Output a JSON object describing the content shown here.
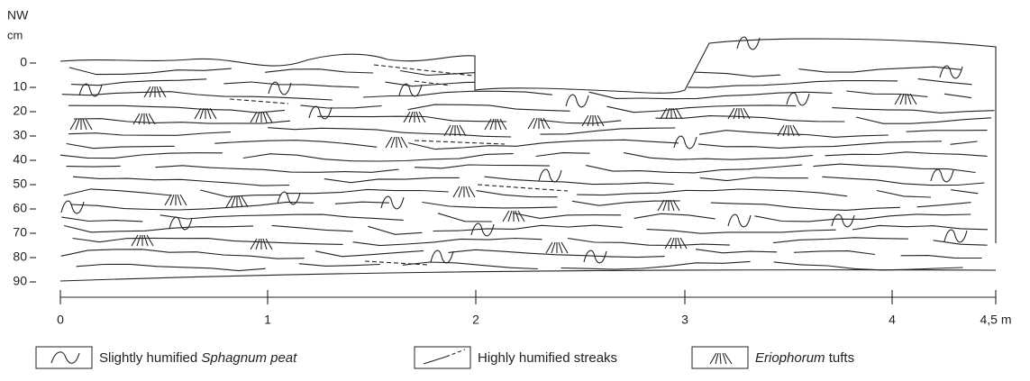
{
  "labels": {
    "direction": "NW",
    "unit": "cm"
  },
  "y_axis": {
    "ticks": [
      "0",
      "10",
      "20",
      "30",
      "40",
      "50",
      "60",
      "70",
      "80",
      "90"
    ]
  },
  "x_axis": {
    "ticks": [
      "0",
      "1",
      "2",
      "3",
      "4",
      "4,5 m"
    ]
  },
  "legend": [
    {
      "plain": "Slightly humified",
      "italic": "Sphagnum peat"
    },
    {
      "plain": "Highly humified streaks"
    },
    {
      "italic": "Eriophorum",
      "plain": "tufts"
    }
  ]
}
